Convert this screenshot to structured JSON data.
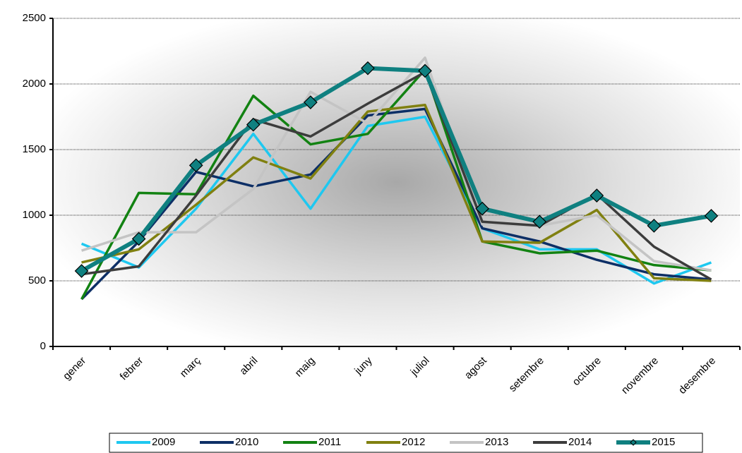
{
  "chart_data": {
    "type": "line",
    "categories": [
      "gener",
      "febrer",
      "març",
      "abril",
      "maig",
      "juny",
      "juliol",
      "agost",
      "setembre",
      "octubre",
      "novembre",
      "desembre"
    ],
    "series": [
      {
        "name": "2009",
        "color": "#1ec8f0",
        "values": [
          783,
          602,
          1050,
          1620,
          1050,
          1680,
          1750,
          900,
          740,
          740,
          480,
          640
        ]
      },
      {
        "name": "2010",
        "color": "#0d2f66",
        "values": [
          360,
          800,
          1330,
          1220,
          1310,
          1760,
          1810,
          900,
          800,
          660,
          550,
          510
        ]
      },
      {
        "name": "2011",
        "color": "#128212",
        "values": [
          360,
          1170,
          1160,
          1910,
          1540,
          1620,
          2110,
          800,
          710,
          730,
          620,
          580
        ]
      },
      {
        "name": "2012",
        "color": "#808010",
        "values": [
          640,
          740,
          1080,
          1440,
          1280,
          1790,
          1840,
          800,
          790,
          1040,
          520,
          500
        ]
      },
      {
        "name": "2013",
        "color": "#c4c4c4",
        "values": [
          730,
          870,
          870,
          1200,
          1940,
          1700,
          2200,
          930,
          920,
          1000,
          650,
          580
        ]
      },
      {
        "name": "2014",
        "color": "#3c3c3c",
        "values": [
          550,
          610,
          1150,
          1730,
          1600,
          1850,
          2090,
          950,
          920,
          1160,
          760,
          510
        ]
      },
      {
        "name": "2015",
        "color": "#0f8080",
        "marker": "diamond",
        "values": [
          575,
          820,
          1380,
          1690,
          1860,
          2120,
          2100,
          1050,
          950,
          1150,
          920,
          995
        ]
      }
    ],
    "ylim": [
      0,
      2500
    ],
    "yticks": [
      0,
      500,
      1000,
      1500,
      2000,
      2500
    ],
    "grid": true,
    "legend": "bottom"
  }
}
